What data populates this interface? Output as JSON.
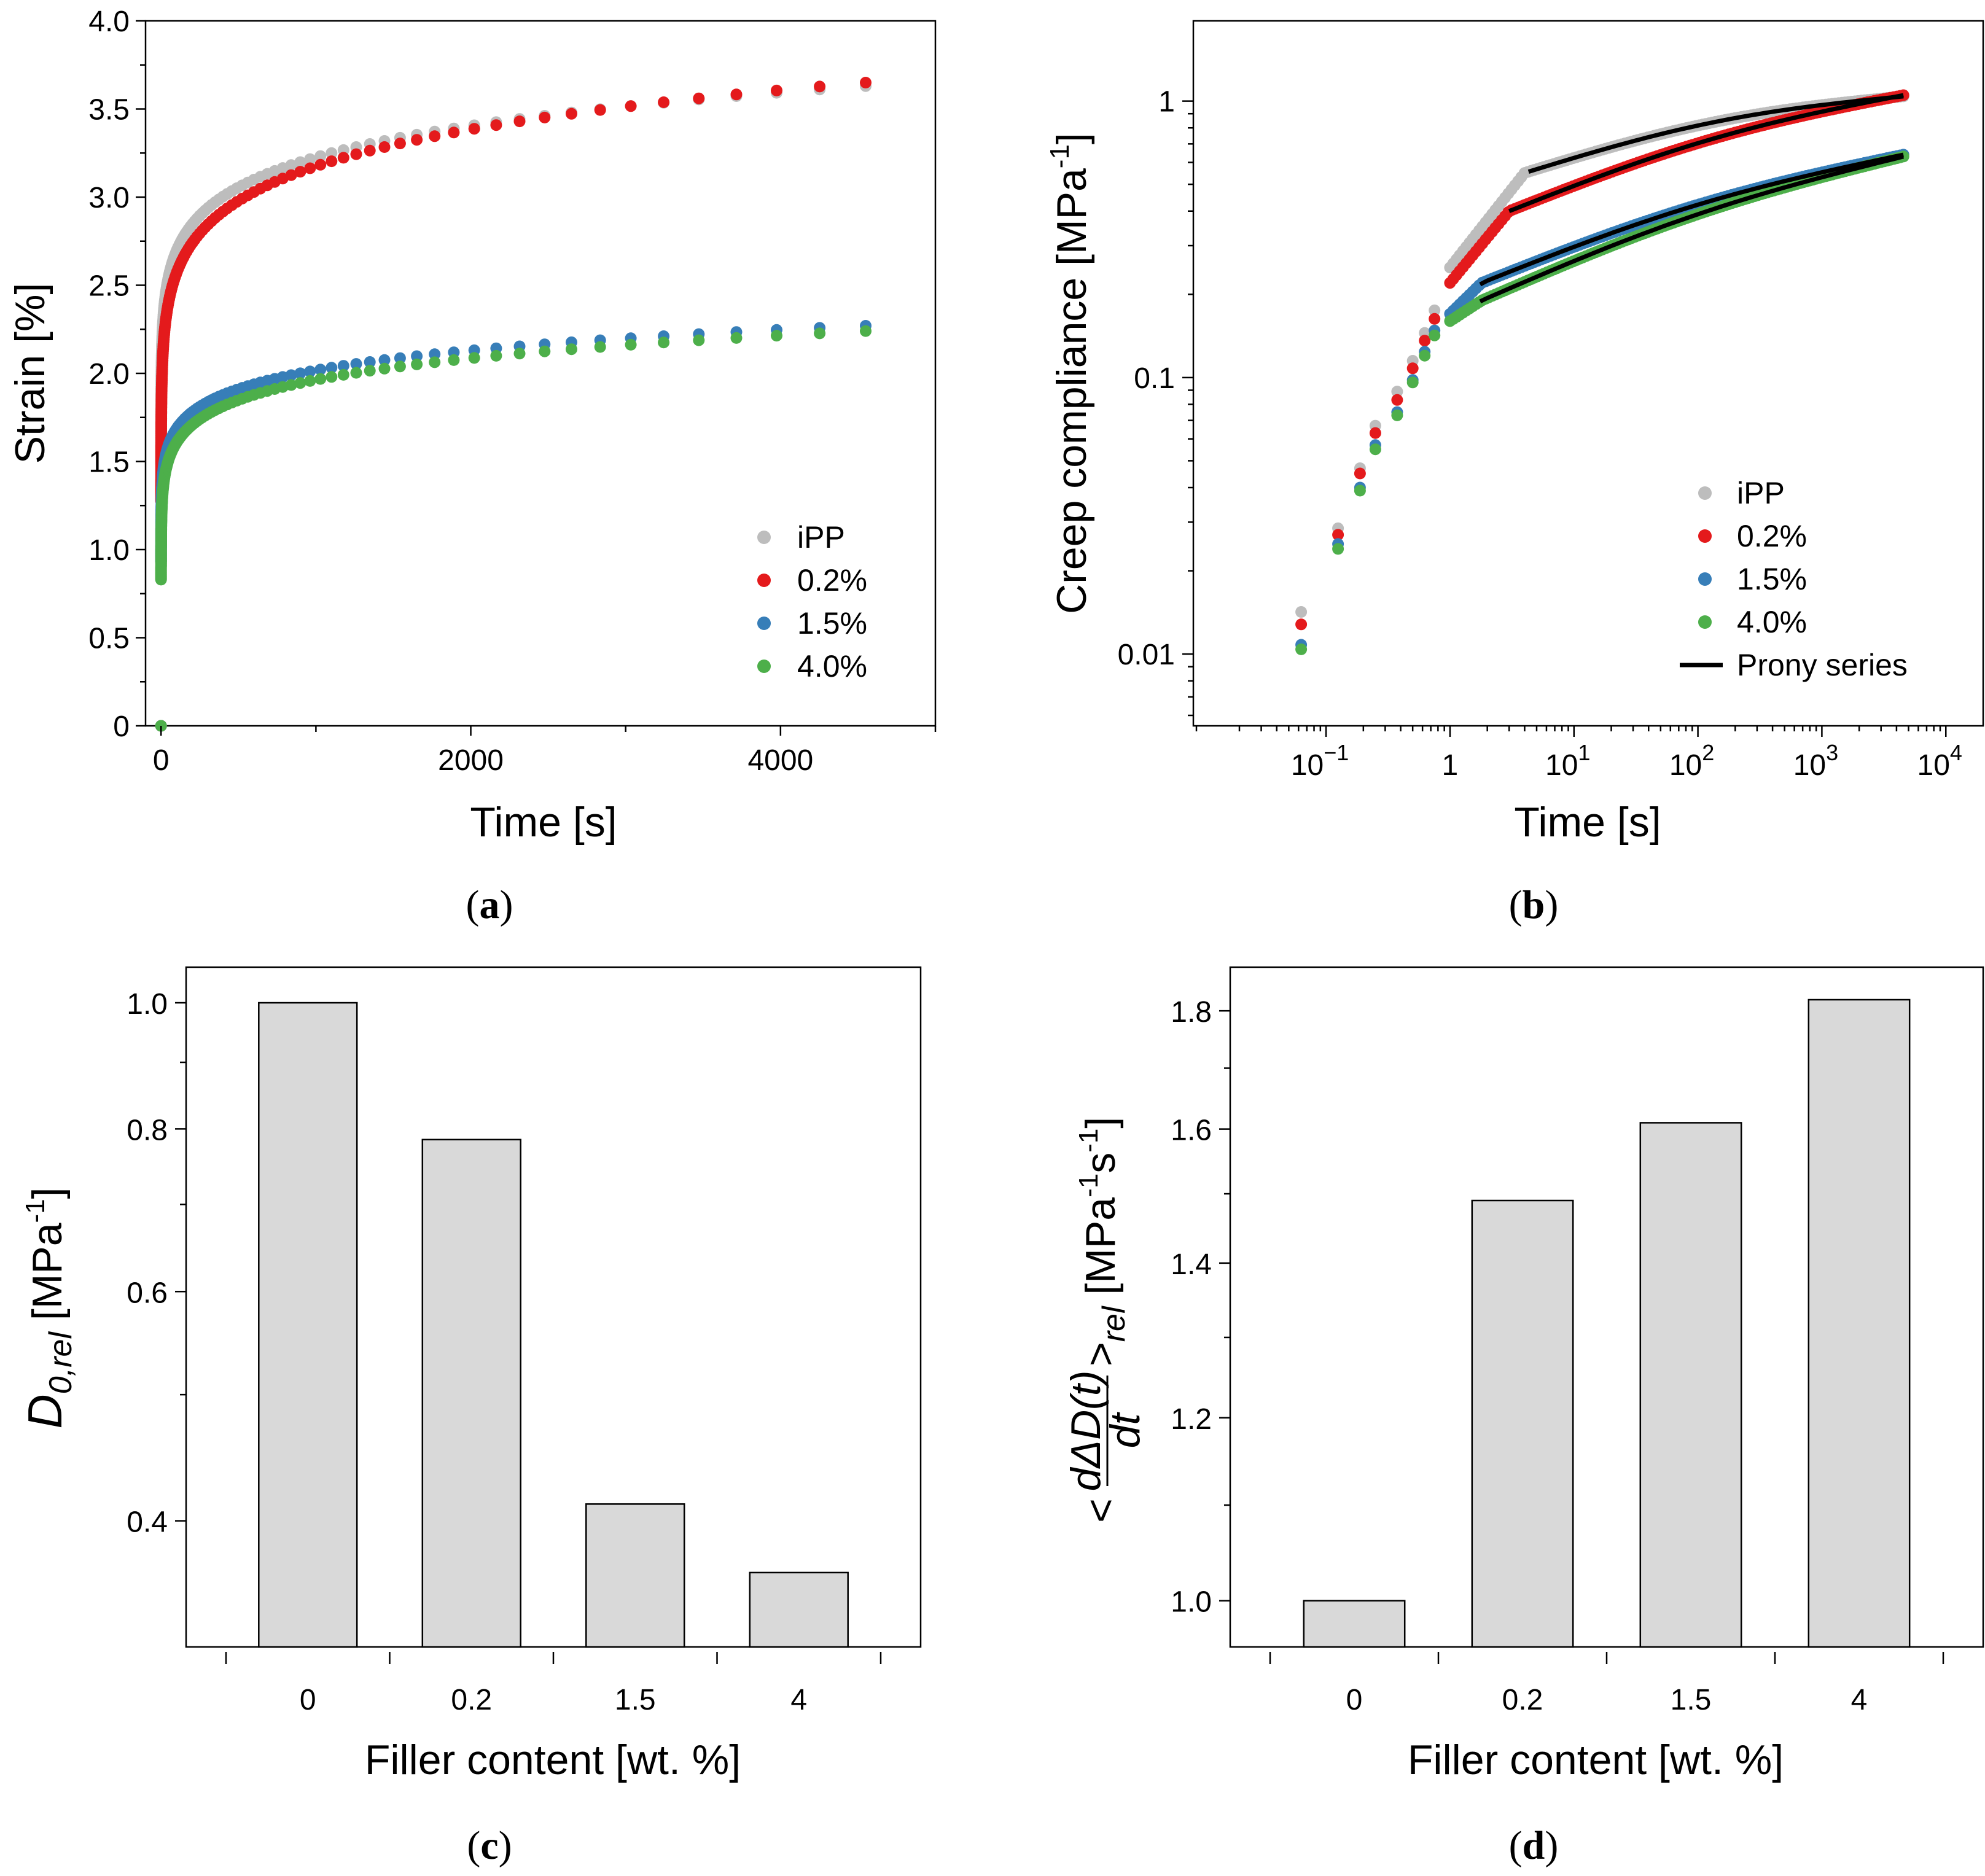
{
  "colors": {
    "iPP": "#bdbdbd",
    "0.2%": "#e41a1c",
    "1.5%": "#377eb8",
    "4.0%": "#4daf4a",
    "prony": "#000000",
    "bar_fill": "#d9d9d9"
  },
  "chart_data": [
    {
      "id": "a",
      "panel_label": "(a)",
      "panel_letter": "a",
      "type": "scatter",
      "xlabel": "Time [s]",
      "ylabel": "Strain [%]",
      "xlim": [
        -100,
        5000
      ],
      "ylim": [
        0,
        4.0
      ],
      "xticks": [
        0,
        2000,
        4000
      ],
      "yticks": [
        0,
        0.5,
        1.0,
        1.5,
        2.0,
        2.5,
        3.0,
        3.5,
        4.0
      ],
      "ytick_labels": [
        "0",
        "0.5",
        "1.0",
        "1.5",
        "2.0",
        "2.5",
        "3.0",
        "3.5",
        "4.0"
      ],
      "legend": [
        "iPP",
        "0.2%",
        "1.5%",
        "4.0%"
      ],
      "legend_position": "bottom-right",
      "model": "power-law creep fit of visible points: strain = A*(t/4550)^n, sampled on log-time",
      "series": [
        {
          "name": "iPP",
          "A": 3.63,
          "n": 0.078
        },
        {
          "name": "0.2%",
          "A": 3.65,
          "n": 0.092
        },
        {
          "name": "1.5%",
          "A": 2.27,
          "n": 0.078
        },
        {
          "name": "4.0%",
          "A": 2.24,
          "n": 0.087
        }
      ]
    },
    {
      "id": "b",
      "panel_label": "(b)",
      "panel_letter": "b",
      "type": "scatter",
      "xscale": "log",
      "yscale": "log",
      "xlabel": "Time [s]",
      "ylabel": "Creep compliance [MPa",
      "ylabel_sup": "-1",
      "ylabel_end": "]",
      "xlim": [
        0.0085,
        20000
      ],
      "ylim": [
        0.0055,
        1.95
      ],
      "xtick_labels": [
        {
          "base": "10",
          "exp": "−1",
          "value": 0.1
        },
        {
          "base": "1",
          "exp": "",
          "value": 1
        },
        {
          "base": "10",
          "exp": "1",
          "value": 10
        },
        {
          "base": "10",
          "exp": "2",
          "value": 100
        },
        {
          "base": "10",
          "exp": "3",
          "value": 1000
        },
        {
          "base": "10",
          "exp": "4",
          "value": 10000
        }
      ],
      "yticks": [
        0.01,
        0.1,
        1
      ],
      "ytick_labels": [
        "0.01",
        "0.1",
        "1"
      ],
      "legend": [
        "iPP",
        "0.2%",
        "1.5%",
        "4.0%",
        "Prony series"
      ],
      "legend_position": "bottom-right",
      "early_points": {
        "t": [
          0.063,
          0.125,
          0.188,
          0.25,
          0.375,
          0.5,
          0.625,
          0.75,
          1.0
        ],
        "iPP": [
          0.0142,
          0.0285,
          0.047,
          0.067,
          0.089,
          0.115,
          0.145,
          0.175,
          0.25
        ],
        "0.2%": [
          0.0128,
          0.027,
          0.045,
          0.063,
          0.083,
          0.108,
          0.136,
          0.163,
          0.22
        ],
        "1.5%": [
          0.0108,
          0.025,
          0.04,
          0.057,
          0.075,
          0.098,
          0.124,
          0.148,
          0.17
        ],
        "4.0%": [
          0.0104,
          0.024,
          0.039,
          0.055,
          0.073,
          0.096,
          0.12,
          0.142,
          0.16
        ]
      },
      "knee_points": {
        "iPP": {
          "t": 4.0,
          "D": 0.55
        },
        "0.2%": {
          "t": 3.0,
          "D": 0.4
        },
        "1.5%": {
          "t": 1.8,
          "D": 0.22
        },
        "4.0%": {
          "t": 1.8,
          "D": 0.19
        }
      },
      "end_points": {
        "t": 4550,
        "iPP": 1.04,
        "0.2%": 1.05,
        "1.5%": 0.64,
        "4.0%": 0.63
      },
      "prony_start": {
        "iPP": 4.3,
        "0.2%": 3.0,
        "1.5%": 1.75,
        "4.0%": 1.75
      }
    },
    {
      "id": "c",
      "panel_label": "(c)",
      "panel_letter": "c",
      "type": "bar",
      "yscale": "log",
      "categories": [
        "0",
        "0.2",
        "1.5",
        "4"
      ],
      "values": [
        1.0,
        0.785,
        0.412,
        0.365
      ],
      "xlabel": "Filler content [wt. %]",
      "ylabel_main": "D",
      "ylabel_sub": "0,rel",
      "ylabel_unit": " [MPa",
      "ylabel_sup": "-1",
      "ylabel_end": "]",
      "ylim": [
        0.32,
        1.065
      ],
      "yticks": [
        0.4,
        0.6,
        0.8,
        1.0
      ],
      "ytick_labels": [
        "0.4",
        "0.6",
        "0.8",
        "1.0"
      ],
      "minor_yticks": [
        0.5,
        0.7,
        0.9
      ]
    },
    {
      "id": "d",
      "panel_label": "(d)",
      "panel_letter": "d",
      "type": "bar",
      "yscale": "log",
      "categories": [
        "0",
        "0.2",
        "1.5",
        "4"
      ],
      "values": [
        1.0,
        1.49,
        1.61,
        1.82
      ],
      "xlabel": "Filler content [wt. %]",
      "ylabel_lt": "<",
      "ylabel_num": "dΔD(t)",
      "ylabel_den": "dt",
      "ylabel_gt": ">",
      "ylabel_sub": "rel",
      "ylabel_unit": " [MPa",
      "ylabel_sup1": "-1",
      "ylabel_s": "s",
      "ylabel_sup2": "-1",
      "ylabel_end": "]",
      "ylim": [
        0.955,
        1.88
      ],
      "yticks": [
        1.0,
        1.2,
        1.4,
        1.6,
        1.8
      ],
      "ytick_labels": [
        "1.0",
        "1.2",
        "1.4",
        "1.6",
        "1.8"
      ],
      "minor_yticks": [
        1.1,
        1.3,
        1.5,
        1.7
      ]
    }
  ]
}
